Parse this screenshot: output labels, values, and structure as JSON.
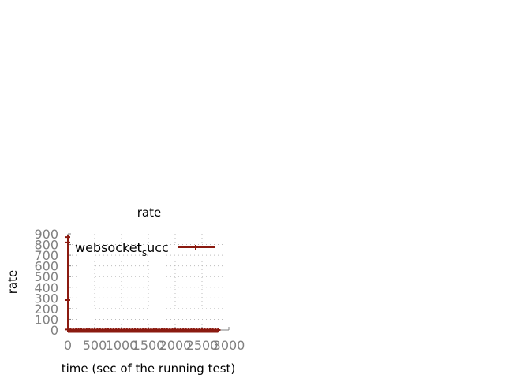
{
  "chart_data": {
    "type": "line",
    "title": "rate",
    "xlabel": "time (sec of the running test)",
    "ylabel": "rate",
    "xlim": [
      0,
      3000
    ],
    "ylim": [
      0,
      900
    ],
    "x_ticks": [
      "0",
      "500",
      "1000",
      "1500",
      "2000",
      "2500",
      "3000"
    ],
    "y_ticks": [
      "0",
      "100",
      "200",
      "300",
      "400",
      "500",
      "600",
      "700",
      "800",
      "900"
    ],
    "grid": true,
    "legend_position": "top-right",
    "legend": {
      "text": "websocket",
      "subscript": "s",
      "suffix": "ucc"
    },
    "series": [
      {
        "name": "websocket_succ",
        "color": "#8b1a10",
        "marker": "plus",
        "points": [
          [
            0,
            870
          ],
          [
            0,
            820
          ],
          [
            0,
            280
          ],
          [
            0,
            5
          ],
          [
            50,
            0
          ],
          [
            100,
            0
          ],
          [
            150,
            0
          ],
          [
            200,
            0
          ],
          [
            250,
            0
          ],
          [
            300,
            0
          ],
          [
            350,
            0
          ],
          [
            400,
            0
          ],
          [
            450,
            0
          ],
          [
            500,
            0
          ],
          [
            550,
            0
          ],
          [
            600,
            0
          ],
          [
            650,
            0
          ],
          [
            700,
            0
          ],
          [
            750,
            0
          ],
          [
            800,
            0
          ],
          [
            850,
            0
          ],
          [
            900,
            0
          ],
          [
            950,
            0
          ],
          [
            1000,
            0
          ],
          [
            1050,
            0
          ],
          [
            1100,
            0
          ],
          [
            1150,
            0
          ],
          [
            1200,
            0
          ],
          [
            1250,
            0
          ],
          [
            1300,
            0
          ],
          [
            1350,
            0
          ],
          [
            1400,
            0
          ],
          [
            1450,
            0
          ],
          [
            1500,
            0
          ],
          [
            1550,
            0
          ],
          [
            1600,
            0
          ],
          [
            1650,
            0
          ],
          [
            1700,
            0
          ],
          [
            1750,
            0
          ],
          [
            1800,
            0
          ],
          [
            1850,
            0
          ],
          [
            1900,
            0
          ],
          [
            1950,
            0
          ],
          [
            2000,
            0
          ],
          [
            2050,
            0
          ],
          [
            2100,
            0
          ],
          [
            2150,
            0
          ],
          [
            2200,
            0
          ],
          [
            2250,
            0
          ],
          [
            2300,
            0
          ],
          [
            2350,
            0
          ],
          [
            2400,
            0
          ],
          [
            2450,
            0
          ],
          [
            2500,
            0
          ],
          [
            2550,
            0
          ],
          [
            2600,
            0
          ],
          [
            2650,
            0
          ],
          [
            2700,
            0
          ],
          [
            2750,
            0
          ],
          [
            2800,
            0
          ]
        ]
      }
    ]
  }
}
